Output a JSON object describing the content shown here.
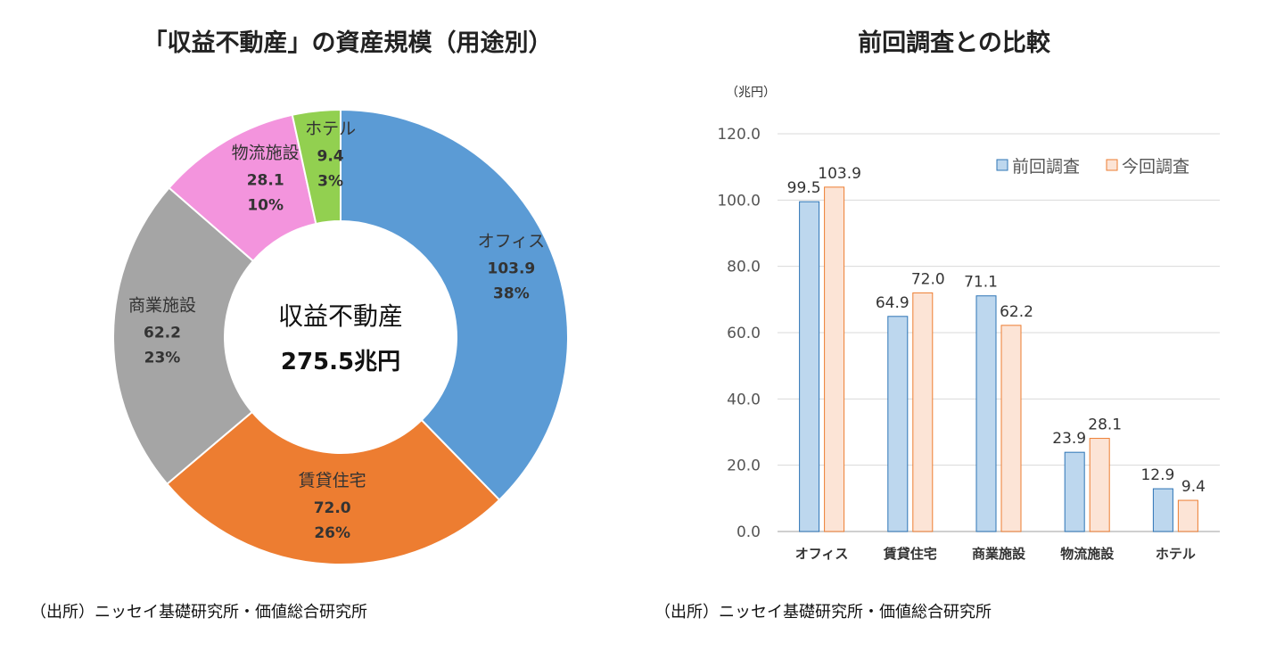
{
  "left_panel": {
    "title": "「収益不動産」の資産規模（用途別）",
    "center_label": "収益不動産",
    "center_value": "275.5兆円",
    "source": "（出所）ニッセイ基礎研究所・価値総合研究所"
  },
  "right_panel": {
    "title": "前回調査との比較",
    "unit": "（兆円）",
    "source": "（出所）ニッセイ基礎研究所・価値総合研究所"
  },
  "colors": {
    "office": "#5b9bd5",
    "rental": "#ed7d31",
    "retail": "#a5a5a5",
    "logistics": "#f394dd",
    "hotel": "#92d050",
    "prev_fill": "#bdd7ee",
    "prev_stroke": "#2e75b6",
    "curr_fill": "#fce4d6",
    "curr_stroke": "#ed7d31"
  },
  "chart_data": [
    {
      "type": "pie",
      "title": "「収益不動産」の資産規模（用途別）",
      "slices": [
        {
          "label": "オフィス",
          "value": 103.9,
          "pct": "38%",
          "color": "#5b9bd5"
        },
        {
          "label": "賃貸住宅",
          "value": 72.0,
          "pct": "26%",
          "color": "#ed7d31"
        },
        {
          "label": "商業施設",
          "value": 62.2,
          "pct": "23%",
          "color": "#a5a5a5"
        },
        {
          "label": "物流施設",
          "value": 28.1,
          "pct": "10%",
          "color": "#f394dd"
        },
        {
          "label": "ホテル",
          "value": 9.4,
          "pct": "3%",
          "color": "#92d050"
        }
      ]
    },
    {
      "type": "bar",
      "title": "前回調査との比較",
      "ylabel": "（兆円）",
      "categories": [
        "オフィス",
        "賃貸住宅",
        "商業施設",
        "物流施設",
        "ホテル"
      ],
      "series": [
        {
          "name": "前回調査",
          "values": [
            99.5,
            64.9,
            71.1,
            23.9,
            12.9
          ]
        },
        {
          "name": "今回調査",
          "values": [
            103.9,
            72.0,
            62.2,
            28.1,
            9.4
          ]
        }
      ],
      "ylim": [
        0,
        120
      ],
      "yticks": [
        "0.0",
        "20.0",
        "40.0",
        "60.0",
        "80.0",
        "100.0",
        "120.0"
      ],
      "grid": true,
      "legend": "top-right"
    }
  ]
}
